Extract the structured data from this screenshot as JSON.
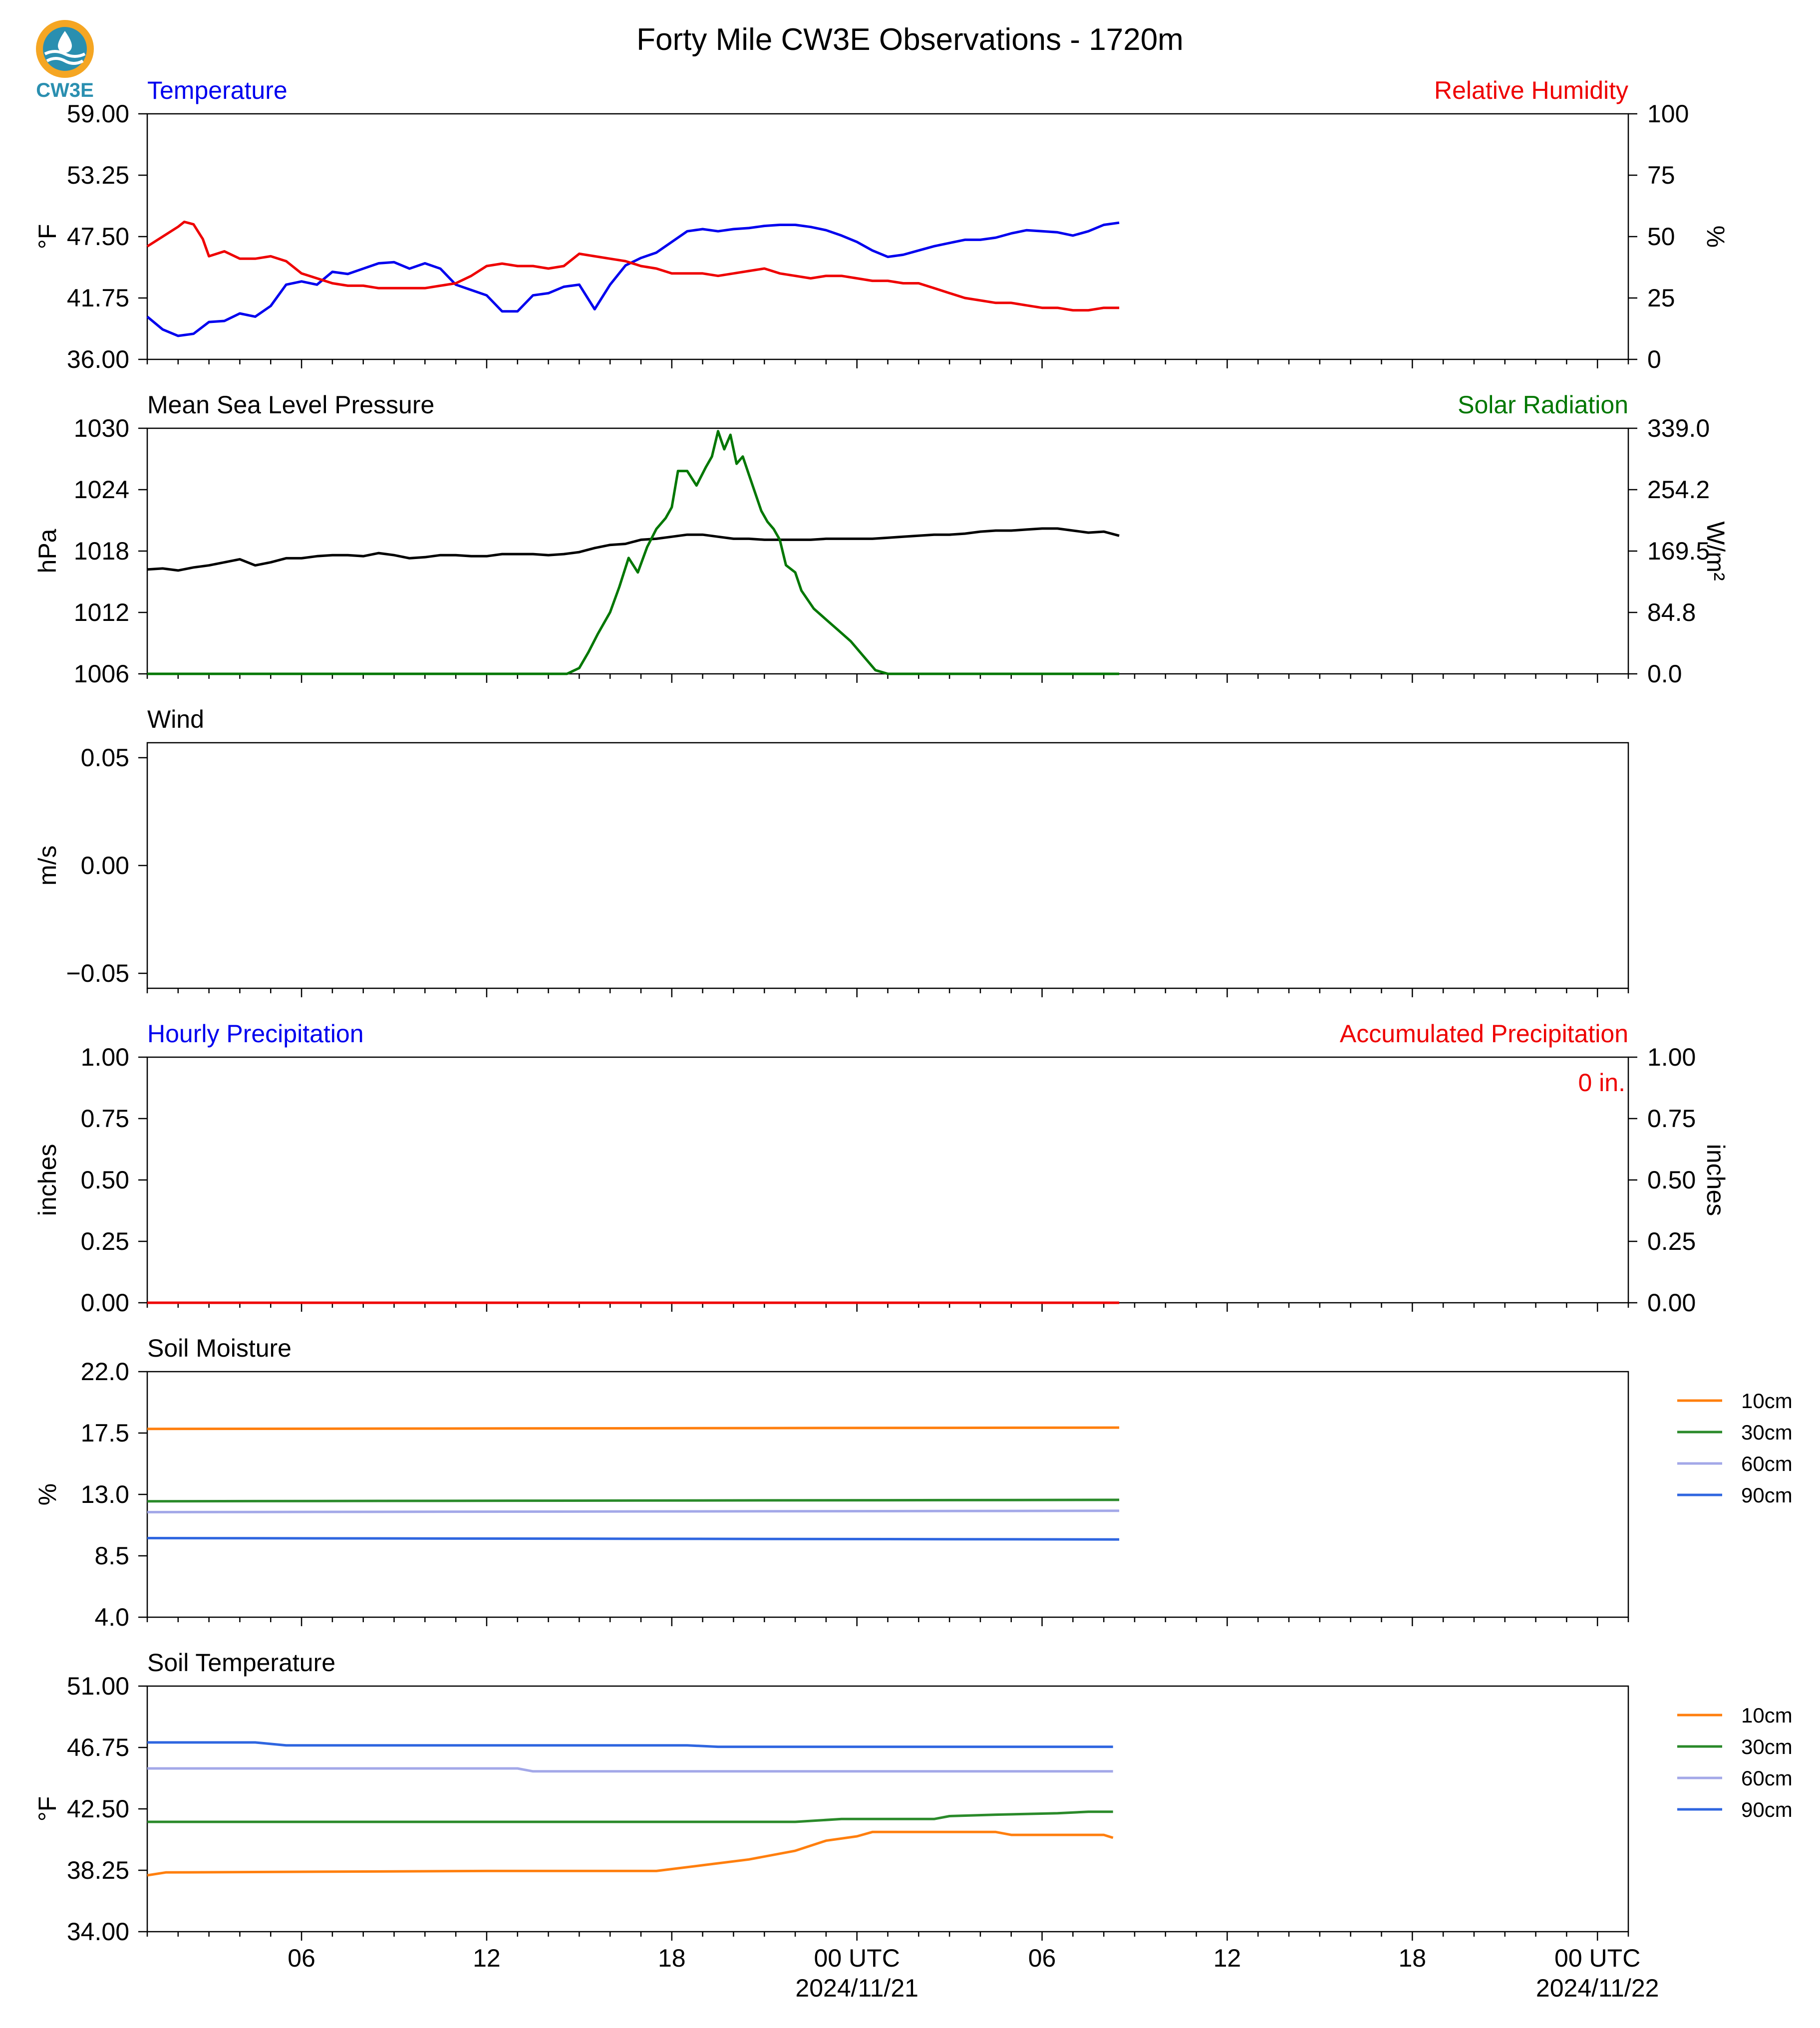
{
  "title": "Forty Mile CW3E Observations - 1720m",
  "logo_text": "CW3E",
  "colors": {
    "blue": "#0000ee",
    "red": "#ee0000",
    "green": "#007700",
    "black": "#000000",
    "orange": "#ff7f0e",
    "soil_green": "#2a8a2a",
    "lavender": "#a3a8e8",
    "soil_blue": "#2f66e0",
    "logo_orange": "#f5a623",
    "logo_teal": "#2a8fb0"
  },
  "time_axis": {
    "unit": "hours since 2024-11-20 00 UTC",
    "range": [
      1,
      49
    ],
    "major_ticks": [
      6,
      12,
      18,
      24,
      30,
      36,
      42,
      48
    ],
    "tick_labels": [
      "06",
      "12",
      "18",
      "00 UTC",
      "06",
      "12",
      "18",
      "00 UTC"
    ],
    "date_labels": [
      {
        "at": 24,
        "text": "2024/11/21"
      },
      {
        "at": 48,
        "text": "2024/11/22"
      }
    ]
  },
  "chart_data": [
    {
      "type": "line",
      "title_left": "Temperature",
      "title_right": "Relative Humidity",
      "ylabel": "°F",
      "ylabel_right": "%",
      "ylim": [
        36,
        59
      ],
      "yticks": [
        "36.00",
        "41.75",
        "47.50",
        "53.25",
        "59.00"
      ],
      "ylim_right": [
        0,
        100
      ],
      "yticks_right": [
        "0",
        "25",
        "50",
        "75",
        "100"
      ],
      "series": [
        {
          "axis": "left",
          "color": "blue",
          "x": [
            1,
            1.5,
            2,
            2.5,
            3,
            3.5,
            4,
            4.5,
            5,
            5.5,
            6,
            6.5,
            7,
            7.5,
            8,
            8.5,
            9,
            9.5,
            10,
            10.5,
            11,
            11.5,
            12,
            12.5,
            13,
            13.5,
            14,
            14.5,
            15,
            15.5,
            16,
            16.5,
            17,
            17.5,
            18,
            18.5,
            19,
            19.5,
            20,
            20.5,
            21,
            21.5,
            22,
            22.5,
            23,
            23.5,
            24,
            24.5,
            25,
            25.5,
            26,
            26.5,
            27,
            27.5,
            28,
            28.5,
            29,
            29.5,
            30,
            30.5,
            31,
            31.5,
            32,
            32.5
          ],
          "y": [
            40.0,
            38.8,
            38.2,
            38.4,
            39.5,
            39.6,
            40.3,
            40.0,
            41.0,
            43.0,
            43.3,
            43.0,
            44.2,
            44.0,
            44.5,
            45.0,
            45.1,
            44.5,
            45.0,
            44.5,
            43.0,
            42.5,
            42.0,
            40.5,
            40.5,
            42.0,
            42.2,
            42.8,
            43.0,
            40.7,
            43.0,
            44.8,
            45.5,
            46.0,
            47.0,
            48.0,
            48.2,
            48.0,
            48.2,
            48.3,
            48.5,
            48.6,
            48.6,
            48.4,
            48.1,
            47.6,
            47.0,
            46.2,
            45.6,
            45.8,
            46.2,
            46.6,
            46.9,
            47.2,
            47.2,
            47.4,
            47.8,
            48.1,
            48.0,
            47.9,
            47.6,
            48.0,
            48.6,
            48.8
          ]
        },
        {
          "axis": "right",
          "color": "red",
          "x": [
            1,
            1.5,
            2,
            2.2,
            2.5,
            2.8,
            3,
            3.5,
            4,
            4.5,
            5,
            5.5,
            6,
            6.5,
            7,
            7.5,
            8,
            8.5,
            9,
            9.5,
            10,
            10.5,
            11,
            11.5,
            12,
            12.5,
            13,
            13.5,
            14,
            14.5,
            15,
            15.5,
            16,
            16.5,
            17,
            17.5,
            18,
            18.5,
            19,
            19.5,
            20,
            20.5,
            21,
            21.5,
            22,
            22.5,
            23,
            23.5,
            24,
            24.5,
            25,
            25.5,
            26,
            26.5,
            27,
            27.5,
            28,
            28.5,
            29,
            29.5,
            30,
            30.5,
            31,
            31.5,
            32,
            32.5
          ],
          "y": [
            46,
            50,
            54,
            56,
            55,
            49,
            42,
            44,
            41,
            41,
            42,
            40,
            35,
            33,
            31,
            30,
            30,
            29,
            29,
            29,
            29,
            30,
            31,
            34,
            38,
            39,
            38,
            38,
            37,
            38,
            43,
            42,
            41,
            40,
            38,
            37,
            35,
            35,
            35,
            34,
            35,
            36,
            37,
            35,
            34,
            33,
            34,
            34,
            33,
            32,
            32,
            31,
            31,
            29,
            27,
            25,
            24,
            23,
            23,
            22,
            21,
            21,
            20,
            20,
            21,
            21
          ]
        }
      ]
    },
    {
      "type": "line",
      "title_left": "Mean Sea Level Pressure",
      "title_right": "Solar Radiation",
      "ylabel": "hPa",
      "ylabel_right": "W/m²",
      "ylim": [
        1006,
        1030
      ],
      "yticks": [
        "1006",
        "1012",
        "1018",
        "1024",
        "1030"
      ],
      "ylim_right": [
        0,
        339
      ],
      "yticks_right": [
        "0.0",
        "84.8",
        "169.5",
        "254.2",
        "339.0"
      ],
      "series": [
        {
          "axis": "left",
          "color": "black",
          "x": [
            1,
            1.5,
            2,
            2.5,
            3,
            3.5,
            4,
            4.5,
            5,
            5.5,
            6,
            6.5,
            7,
            7.5,
            8,
            8.5,
            9,
            9.5,
            10,
            10.5,
            11,
            11.5,
            12,
            12.5,
            13,
            13.5,
            14,
            14.5,
            15,
            15.5,
            16,
            16.5,
            17,
            17.5,
            18,
            18.5,
            19,
            19.5,
            20,
            20.5,
            21,
            21.5,
            22,
            22.5,
            23,
            23.5,
            24,
            24.5,
            25,
            25.5,
            26,
            26.5,
            27,
            27.5,
            28,
            28.5,
            29,
            29.5,
            30,
            30.5,
            31,
            31.5,
            32,
            32.5
          ],
          "y": [
            1016.2,
            1016.3,
            1016.1,
            1016.4,
            1016.6,
            1016.9,
            1017.2,
            1016.6,
            1016.9,
            1017.3,
            1017.3,
            1017.5,
            1017.6,
            1017.6,
            1017.5,
            1017.8,
            1017.6,
            1017.3,
            1017.4,
            1017.6,
            1017.6,
            1017.5,
            1017.5,
            1017.7,
            1017.7,
            1017.7,
            1017.6,
            1017.7,
            1017.9,
            1018.3,
            1018.6,
            1018.7,
            1019.1,
            1019.2,
            1019.4,
            1019.6,
            1019.6,
            1019.4,
            1019.2,
            1019.2,
            1019.1,
            1019.1,
            1019.1,
            1019.1,
            1019.2,
            1019.2,
            1019.2,
            1019.2,
            1019.3,
            1019.4,
            1019.5,
            1019.6,
            1019.6,
            1019.7,
            1019.9,
            1020.0,
            1020.0,
            1020.1,
            1020.2,
            1020.2,
            1020.0,
            1019.8,
            1019.9,
            1019.5
          ]
        },
        {
          "axis": "right",
          "color": "green",
          "x": [
            1,
            13,
            14.6,
            15,
            15.3,
            15.6,
            16,
            16.3,
            16.6,
            16.9,
            17.2,
            17.5,
            17.8,
            18,
            18.2,
            18.5,
            18.8,
            19.1,
            19.3,
            19.5,
            19.7,
            19.9,
            20.1,
            20.3,
            20.5,
            20.7,
            20.9,
            21.1,
            21.3,
            21.5,
            21.7,
            22.0,
            22.2,
            22.6,
            23.0,
            23.4,
            23.8,
            24.2,
            24.6,
            25.0,
            32.5
          ],
          "y": [
            0,
            0,
            0,
            8,
            30,
            55,
            85,
            120,
            160,
            140,
            175,
            200,
            215,
            230,
            280,
            280,
            260,
            285,
            300,
            335,
            310,
            330,
            290,
            300,
            275,
            250,
            225,
            210,
            200,
            185,
            150,
            140,
            115,
            90,
            75,
            60,
            45,
            25,
            5,
            0,
            0
          ]
        }
      ]
    },
    {
      "type": "line",
      "title_left": "Wind",
      "ylabel": "m/s",
      "ylim": [
        -0.055,
        0.055
      ],
      "yticks": [
        "−0.05",
        "0.00",
        "0.05"
      ],
      "series": []
    },
    {
      "type": "line",
      "title_left": "Hourly Precipitation",
      "title_right": "Accumulated Precipitation",
      "ylabel": "inches",
      "ylabel_right": "inches",
      "annotation": "0 in.",
      "ylim": [
        0,
        1
      ],
      "yticks": [
        "0.00",
        "0.25",
        "0.50",
        "0.75",
        "1.00"
      ],
      "ylim_right": [
        0,
        1
      ],
      "yticks_right": [
        "0.00",
        "0.25",
        "0.50",
        "0.75",
        "1.00"
      ],
      "series": [
        {
          "axis": "right",
          "color": "red",
          "x": [
            1,
            32.5
          ],
          "y": [
            0,
            0
          ]
        }
      ]
    },
    {
      "type": "line",
      "title_left": "Soil Moisture",
      "ylabel": "%",
      "ylim": [
        4,
        22
      ],
      "yticks": [
        "4.0",
        "8.5",
        "13.0",
        "17.5",
        "22.0"
      ],
      "legend": [
        "10cm",
        "30cm",
        "60cm",
        "90cm"
      ],
      "series": [
        {
          "name": "10cm",
          "color": "orange",
          "x": [
            1,
            32.5
          ],
          "y": [
            17.8,
            17.9
          ]
        },
        {
          "name": "30cm",
          "color": "soil_green",
          "x": [
            1,
            32.5
          ],
          "y": [
            12.5,
            12.6
          ]
        },
        {
          "name": "60cm",
          "color": "lavender",
          "x": [
            1,
            32.5
          ],
          "y": [
            11.7,
            11.8
          ]
        },
        {
          "name": "90cm",
          "color": "soil_blue",
          "x": [
            1,
            32.5
          ],
          "y": [
            9.8,
            9.7
          ]
        }
      ]
    },
    {
      "type": "line",
      "title_left": "Soil Temperature",
      "ylabel": "°F",
      "ylim": [
        34,
        51
      ],
      "yticks": [
        "34.00",
        "38.25",
        "42.50",
        "46.75",
        "51.00"
      ],
      "legend": [
        "10cm",
        "30cm",
        "60cm",
        "90cm"
      ],
      "series": [
        {
          "name": "10cm",
          "color": "orange",
          "x": [
            1,
            1.6,
            12,
            17.5,
            19,
            20.5,
            22,
            23,
            24,
            24.5,
            28.5,
            29,
            32,
            32.3
          ],
          "y": [
            37.9,
            38.1,
            38.2,
            38.2,
            38.6,
            39.0,
            39.6,
            40.3,
            40.6,
            40.9,
            40.9,
            40.7,
            40.7,
            40.5
          ]
        },
        {
          "name": "30cm",
          "color": "soil_green",
          "x": [
            1,
            8,
            14,
            22,
            23.5,
            24.5,
            26.5,
            27,
            28.5,
            30.5,
            31.5,
            32.3
          ],
          "y": [
            41.6,
            41.6,
            41.6,
            41.6,
            41.8,
            41.8,
            41.8,
            42.0,
            42.1,
            42.2,
            42.3,
            42.3
          ]
        },
        {
          "name": "60cm",
          "color": "lavender",
          "x": [
            1,
            13,
            13.5,
            20,
            30,
            32.3
          ],
          "y": [
            45.3,
            45.3,
            45.1,
            45.1,
            45.1,
            45.1
          ]
        },
        {
          "name": "90cm",
          "color": "soil_blue",
          "x": [
            1,
            3.5,
            4.5,
            5.5,
            18.5,
            19.5,
            32.3
          ],
          "y": [
            47.1,
            47.1,
            47.1,
            46.9,
            46.9,
            46.8,
            46.8
          ]
        }
      ]
    }
  ]
}
